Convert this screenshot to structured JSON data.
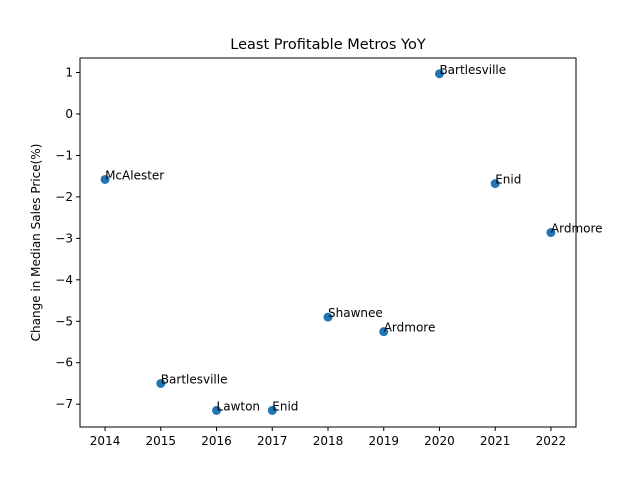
{
  "chart_data": {
    "type": "scatter",
    "title": "Least Profitable Metros YoY",
    "xlabel": "",
    "ylabel": "Change in Median Sales Price(%)",
    "xlim": [
      2013.55,
      2022.45
    ],
    "ylim": [
      -7.55,
      1.35
    ],
    "xticks": [
      2014,
      2015,
      2016,
      2017,
      2018,
      2019,
      2020,
      2021,
      2022
    ],
    "yticks": [
      -7,
      -6,
      -5,
      -4,
      -3,
      -2,
      -1,
      0,
      1
    ],
    "grid": false,
    "marker_color": "#1f77b4",
    "points": [
      {
        "x": 2014,
        "y": -1.58,
        "label": "McAlester"
      },
      {
        "x": 2015,
        "y": -6.5,
        "label": "Bartlesville"
      },
      {
        "x": 2016,
        "y": -7.15,
        "label": "Lawton"
      },
      {
        "x": 2017,
        "y": -7.15,
        "label": "Enid"
      },
      {
        "x": 2018,
        "y": -4.9,
        "label": "Shawnee"
      },
      {
        "x": 2019,
        "y": -5.25,
        "label": "Ardmore"
      },
      {
        "x": 2020,
        "y": 0.97,
        "label": "Bartlesville"
      },
      {
        "x": 2021,
        "y": -1.68,
        "label": "Enid"
      },
      {
        "x": 2022,
        "y": -2.86,
        "label": "Ardmore"
      }
    ]
  }
}
